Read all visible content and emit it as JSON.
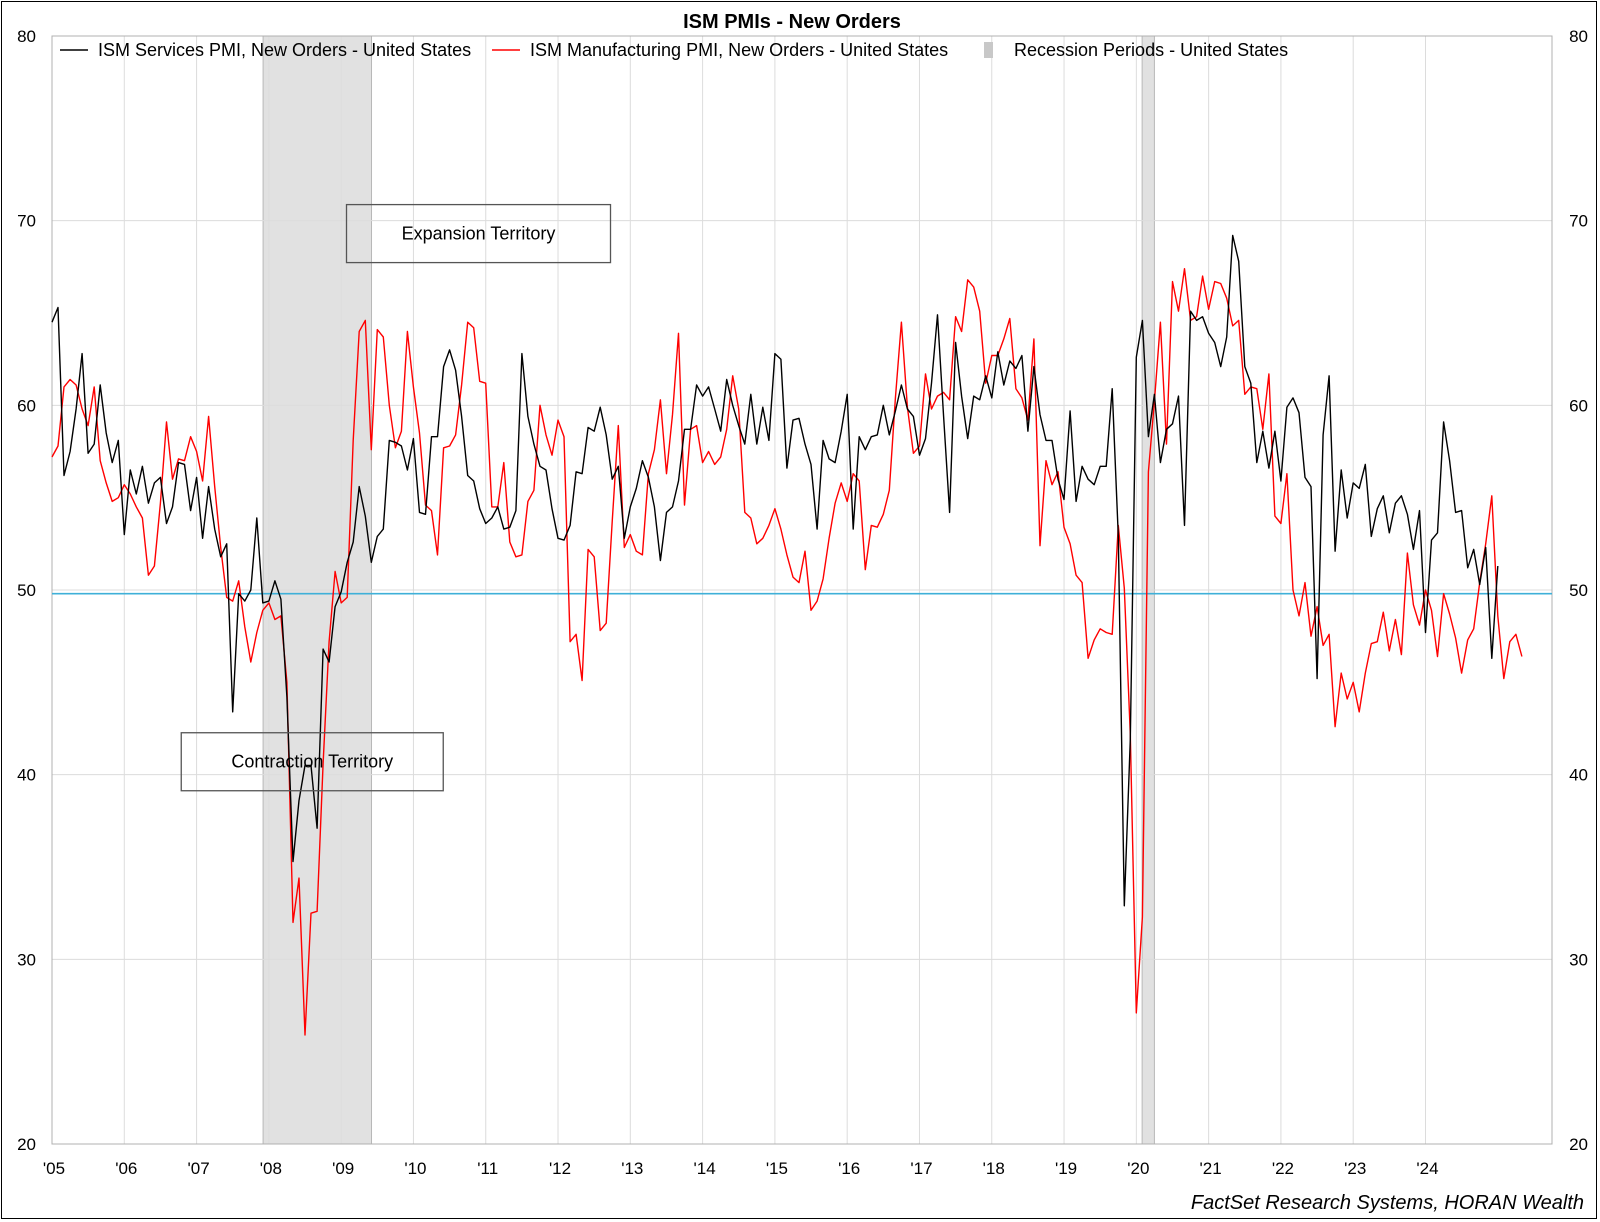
{
  "chart_data": {
    "type": "line",
    "title": "ISM PMIs - New Orders",
    "source": "FactSet Research Systems, HORAN Wealth",
    "ylim": [
      20,
      80
    ],
    "y_ticks": [
      "20",
      "30",
      "40",
      "50",
      "60",
      "70",
      "80"
    ],
    "x_ticks": [
      "'05",
      "'06",
      "'07",
      "'08",
      "'09",
      "'10",
      "'11",
      "'12",
      "'13",
      "'14",
      "'15",
      "'16",
      "'17",
      "'18",
      "'19",
      "'20",
      "'21",
      "'22",
      "'23",
      "'24"
    ],
    "x_range": [
      2005.0,
      2025.75
    ],
    "grid": true,
    "legend_position": "top",
    "reference_line": {
      "value": 49.8,
      "color": "#3fb0d8"
    },
    "recessions": [
      {
        "start": 2007.92,
        "end": 2009.42
      },
      {
        "start": 2020.08,
        "end": 2020.25
      }
    ],
    "legend": [
      {
        "label": "ISM Services PMI, New Orders - United States",
        "kind": "line",
        "color": "#000000"
      },
      {
        "label": "ISM Manufacturing PMI, New Orders - United States",
        "kind": "line",
        "color": "#ff0000"
      },
      {
        "label": "Recession Periods - United States",
        "kind": "bar",
        "color": "#c8c8c8"
      }
    ],
    "annotations": [
      {
        "text": "Expansion Territory",
        "x": 2010.9,
        "y": 69.3
      },
      {
        "text": "Contraction Territory",
        "x": 2008.6,
        "y": 40.7
      }
    ],
    "series": [
      {
        "name": "ISM Services PMI, New Orders - United States",
        "color": "#000000",
        "start": 2005.0,
        "step": 0.0833333,
        "values": [
          64.5,
          65.3,
          56.2,
          57.5,
          59.8,
          62.8,
          57.4,
          57.9,
          61.1,
          58.5,
          56.9,
          58.1,
          53.0,
          56.5,
          55.2,
          56.7,
          54.7,
          55.8,
          56.1,
          53.6,
          54.5,
          56.9,
          56.8,
          54.3,
          56.1,
          52.8,
          55.6,
          53.3,
          51.8,
          52.5,
          43.4,
          49.8,
          49.4,
          50.0,
          53.9,
          49.3,
          49.4,
          50.5,
          49.5,
          44.2,
          35.3,
          38.6,
          40.5,
          40.5,
          37.1,
          46.8,
          46.1,
          49.1,
          49.9,
          51.5,
          52.6,
          55.6,
          54.0,
          51.5,
          52.9,
          53.3,
          58.1,
          58.0,
          57.8,
          56.5,
          58.2,
          54.2,
          54.1,
          58.3,
          58.3,
          62.1,
          63.0,
          61.9,
          59.4,
          56.2,
          55.9,
          54.4,
          53.6,
          53.9,
          54.5,
          53.3,
          53.4,
          54.3,
          62.8,
          59.4,
          57.9,
          56.7,
          56.5,
          54.4,
          52.8,
          52.7,
          53.5,
          56.4,
          56.3,
          58.8,
          58.6,
          59.9,
          58.4,
          56.0,
          56.7,
          52.8,
          54.5,
          55.5,
          57.0,
          56.1,
          54.5,
          51.6,
          54.2,
          54.5,
          55.9,
          58.7,
          58.7,
          61.1,
          60.5,
          61.0,
          59.8,
          58.6,
          61.4,
          60.0,
          58.9,
          57.9,
          60.6,
          57.9,
          59.9,
          58.1,
          62.8,
          62.5,
          56.6,
          59.2,
          59.3,
          57.9,
          56.8,
          53.3,
          58.1,
          57.1,
          56.9,
          58.6,
          60.6,
          53.3,
          58.3,
          57.6,
          58.3,
          58.4,
          60.0,
          58.4,
          59.7,
          61.1,
          59.8,
          59.4,
          57.3,
          58.2,
          61.2,
          64.9,
          59.4,
          54.2,
          63.4,
          60.5,
          58.2,
          60.5,
          60.3,
          61.6,
          60.4,
          62.9,
          61.1,
          62.4,
          62.0,
          62.7,
          58.6,
          62.1,
          59.5,
          58.1,
          58.1,
          56.0,
          54.9,
          59.7,
          54.8,
          56.7,
          56.0,
          55.7,
          56.7,
          56.7,
          60.9,
          52.9,
          32.9,
          41.9,
          62.6,
          64.6,
          58.3,
          60.6,
          56.9,
          58.7,
          59.0,
          60.5,
          53.5,
          65.1,
          64.6,
          64.8,
          63.9,
          63.4,
          62.1,
          63.7,
          69.2,
          67.8,
          62.1,
          61.2,
          56.9,
          58.6,
          56.6,
          58.6,
          55.9,
          59.9,
          60.4,
          59.6,
          56.1,
          55.6,
          45.2,
          58.4,
          61.6,
          52.1,
          56.5,
          53.9,
          55.8,
          55.5,
          56.8,
          52.9,
          54.4,
          55.1,
          53.1,
          54.7,
          55.1,
          54.1,
          52.2,
          54.3,
          47.7,
          52.7,
          53.1,
          59.1,
          57.0,
          54.2,
          54.3,
          51.2,
          52.2,
          50.3,
          52.3,
          46.3,
          51.3
        ]
      },
      {
        "name": "ISM Manufacturing PMI, New Orders - United States",
        "color": "#ff0000",
        "start": 2005.0,
        "step": 0.0833333,
        "values": [
          57.2,
          57.8,
          61.0,
          61.4,
          61.1,
          59.8,
          58.9,
          61.0,
          57.0,
          55.8,
          54.8,
          55.0,
          55.7,
          55.2,
          54.5,
          53.9,
          50.8,
          51.3,
          54.7,
          59.1,
          56.0,
          57.1,
          57.0,
          58.3,
          57.5,
          55.9,
          59.4,
          55.6,
          52.3,
          49.6,
          49.4,
          50.5,
          48.0,
          46.1,
          47.7,
          48.9,
          49.3,
          48.4,
          48.6,
          45.0,
          32.0,
          34.4,
          25.9,
          32.5,
          32.6,
          40.6,
          47.2,
          51.0,
          49.3,
          49.6,
          58.1,
          64.0,
          64.6,
          57.6,
          64.1,
          63.7,
          60.0,
          57.7,
          58.6,
          64.0,
          61.0,
          58.5,
          54.6,
          54.3,
          51.9,
          57.7,
          57.8,
          58.4,
          61.1,
          64.5,
          64.2,
          61.3,
          61.2,
          54.5,
          54.5,
          56.9,
          52.6,
          51.8,
          51.9,
          54.8,
          55.4,
          60.0,
          58.4,
          57.3,
          59.2,
          58.3,
          47.2,
          47.6,
          45.1,
          52.2,
          51.8,
          47.8,
          48.2,
          53.7,
          58.9,
          52.3,
          53.0,
          52.1,
          51.9,
          56.3,
          57.6,
          60.3,
          56.3,
          59.5,
          63.9,
          54.6,
          58.7,
          58.9,
          56.9,
          57.5,
          56.8,
          57.2,
          58.7,
          61.6,
          59.8,
          54.2,
          53.9,
          52.5,
          52.8,
          53.5,
          54.4,
          53.3,
          51.9,
          50.7,
          50.4,
          52.1,
          48.9,
          49.4,
          50.6,
          52.8,
          54.7,
          55.8,
          54.8,
          56.3,
          55.9,
          51.1,
          53.5,
          53.4,
          54.1,
          55.4,
          60.4,
          64.5,
          59.9,
          57.4,
          57.8,
          61.7,
          59.8,
          60.5,
          60.7,
          60.3,
          64.8,
          64.0,
          66.8,
          66.4,
          65.1,
          61.2,
          62.7,
          62.7,
          63.6,
          64.7,
          60.9,
          60.4,
          59.2,
          63.6,
          52.4,
          57.0,
          55.7,
          56.4,
          53.4,
          52.5,
          50.8,
          50.4,
          46.3,
          47.3,
          47.9,
          47.7,
          47.6,
          53.5,
          50.1,
          42.2,
          27.1,
          32.3,
          56.4,
          60.2,
          64.5,
          57.9,
          66.7,
          65.1,
          67.4,
          64.6,
          64.8,
          67.0,
          65.2,
          66.7,
          66.6,
          65.8,
          64.3,
          64.6,
          60.6,
          61.0,
          60.9,
          58.7,
          61.7,
          54.0,
          53.6,
          56.3,
          50.0,
          48.6,
          50.4,
          47.5,
          49.1,
          47.0,
          47.6,
          42.6,
          45.5,
          44.1,
          45.0,
          43.4,
          45.5,
          47.1,
          47.2,
          48.8,
          46.7,
          48.4,
          46.5,
          52.0,
          49.2,
          48.1,
          50.0,
          48.9,
          46.4,
          49.8,
          48.7,
          47.4,
          45.5,
          47.3,
          47.9,
          50.4,
          52.5,
          55.1,
          48.6,
          45.2,
          47.2,
          47.6,
          46.4
        ]
      }
    ]
  }
}
